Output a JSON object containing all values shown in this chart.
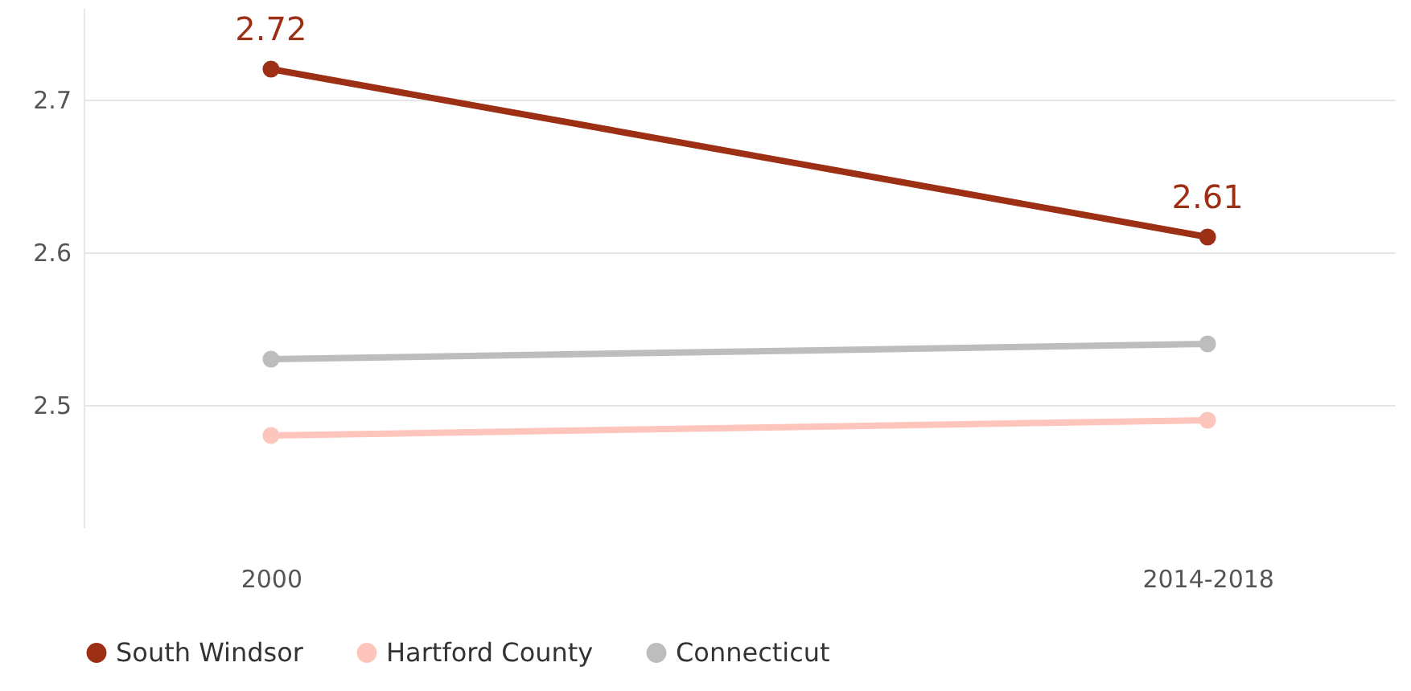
{
  "chart_data": {
    "type": "line",
    "categories": [
      "2000",
      "2014-2018"
    ],
    "series": [
      {
        "name": "South Windsor",
        "color": "#9c2f14",
        "values": [
          2.72,
          2.61
        ],
        "value_labels": [
          "2.72",
          "2.61"
        ]
      },
      {
        "name": "Hartford County",
        "color": "#fdc5bb",
        "values": [
          2.48,
          2.49
        ]
      },
      {
        "name": "Connecticut",
        "color": "#bdbdbd",
        "values": [
          2.53,
          2.54
        ]
      }
    ],
    "ylim": [
      2.42,
      2.76
    ],
    "yticks": [
      2.5,
      2.6,
      2.7
    ],
    "grid": "y",
    "legend": "bottom",
    "marker": "circle",
    "line_style": "solid"
  }
}
